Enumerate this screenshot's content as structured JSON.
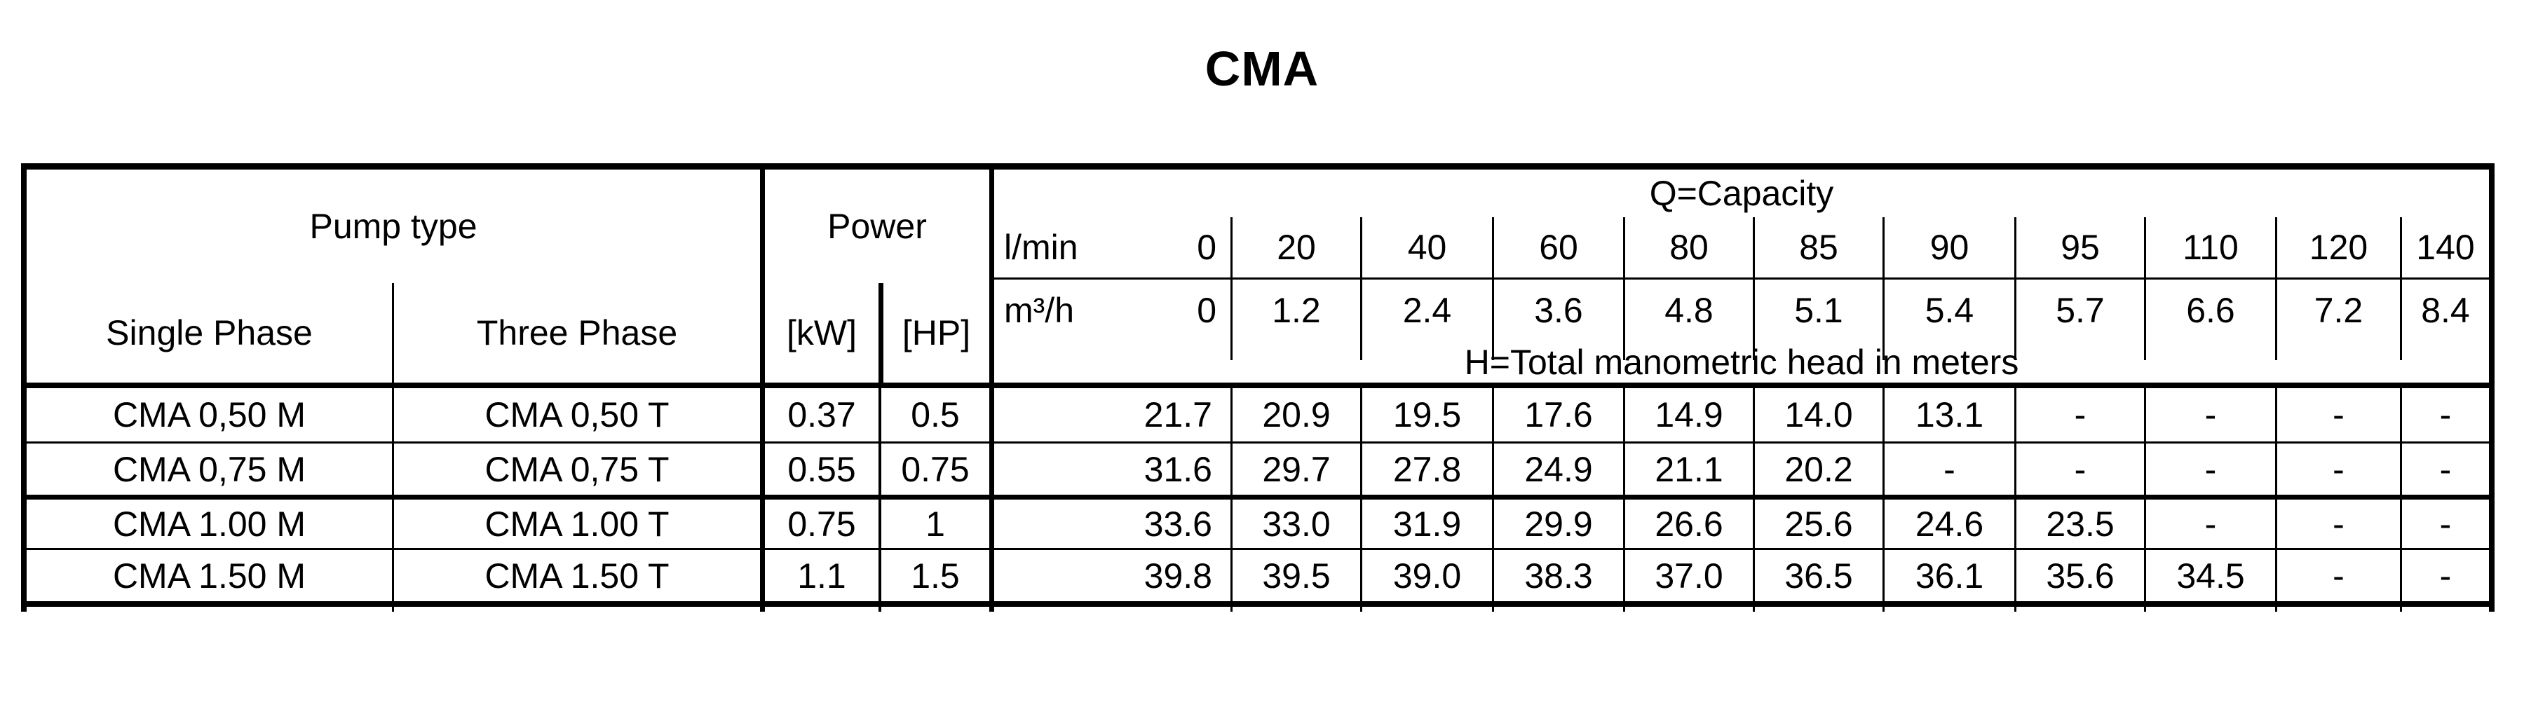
{
  "title": "CMA",
  "colors": {
    "ink": "#000000",
    "background": "#ffffff"
  },
  "table": {
    "headers": {
      "pump_type": "Pump type",
      "single_phase": "Single Phase",
      "three_phase": "Three Phase",
      "power": "Power",
      "kw_unit": "[kW]",
      "hp_unit": "[HP]",
      "capacity": "Q=Capacity",
      "flow_lmin_label": "l/min",
      "flow_m3h_label": "m³/h",
      "head_note": "H=Total manometric head in meters"
    },
    "flow_lmin": [
      "0",
      "20",
      "40",
      "60",
      "80",
      "85",
      "90",
      "95",
      "110",
      "120",
      "140"
    ],
    "flow_m3h": [
      "0",
      "1.2",
      "2.4",
      "3.6",
      "4.8",
      "5.1",
      "5.4",
      "5.7",
      "6.6",
      "7.2",
      "8.4"
    ],
    "rows": [
      {
        "single_phase": "CMA 0,50 M",
        "three_phase": "CMA 0,50 T",
        "kw": "0.37",
        "hp": "0.5",
        "heads": [
          "21.7",
          "20.9",
          "19.5",
          "17.6",
          "14.9",
          "14.0",
          "13.1",
          "-",
          "-",
          "-",
          "-"
        ]
      },
      {
        "single_phase": "CMA 0,75 M",
        "three_phase": "CMA 0,75 T",
        "kw": "0.55",
        "hp": "0.75",
        "heads": [
          "31.6",
          "29.7",
          "27.8",
          "24.9",
          "21.1",
          "20.2",
          "-",
          "-",
          "-",
          "-",
          "-"
        ]
      },
      {
        "single_phase": "CMA 1.00 M",
        "three_phase": "CMA 1.00 T",
        "kw": "0.75",
        "hp": "1",
        "heads": [
          "33.6",
          "33.0",
          "31.9",
          "29.9",
          "26.6",
          "25.6",
          "24.6",
          "23.5",
          "-",
          "-",
          "-"
        ]
      },
      {
        "single_phase": "CMA 1.50 M",
        "three_phase": "CMA 1.50 T",
        "kw": "1.1",
        "hp": "1.5",
        "heads": [
          "39.8",
          "39.5",
          "39.0",
          "38.3",
          "37.0",
          "36.5",
          "36.1",
          "35.6",
          "34.5",
          "-",
          "-"
        ]
      }
    ]
  }
}
